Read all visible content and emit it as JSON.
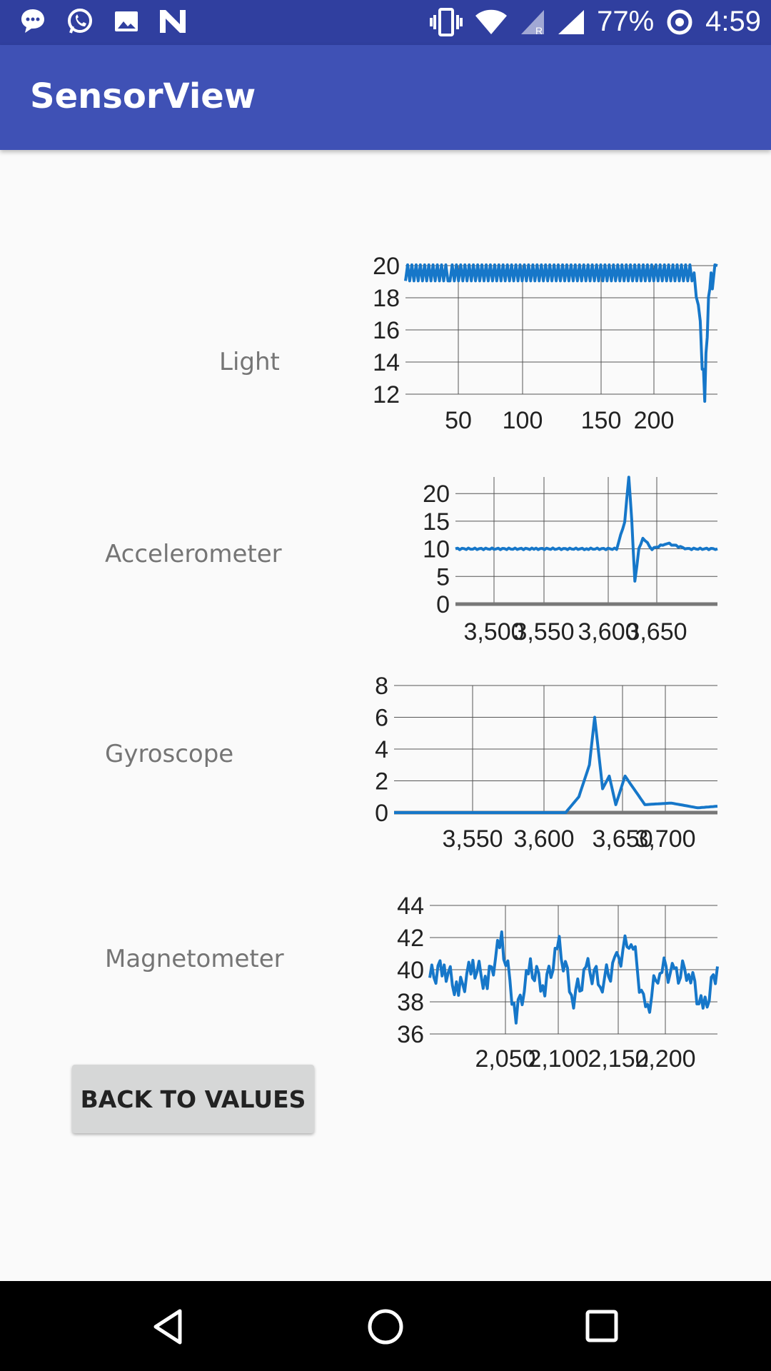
{
  "status_bar": {
    "battery": "77%",
    "time": "4:59",
    "icons_left": [
      "chat-bubble-icon",
      "whatsapp-icon",
      "image-icon",
      "n-logo-icon"
    ],
    "icons_right": [
      "vibrate-icon",
      "wifi-icon",
      "signal-r-icon",
      "signal-icon",
      "battery-saver-icon"
    ]
  },
  "app_bar": {
    "title": "SensorView"
  },
  "rows": [
    {
      "label": "Light"
    },
    {
      "label": "Accelerometer"
    },
    {
      "label": "Gyroscope"
    },
    {
      "label": "Magnetometer"
    }
  ],
  "button": {
    "label": "BACK TO VALUES"
  },
  "nav_bar": {
    "icons": [
      "back-icon",
      "home-icon",
      "recents-icon"
    ]
  },
  "colors": {
    "status": "#303f9f",
    "app_bar": "#3f51b5",
    "series": "#1677c9"
  },
  "chart_data": [
    {
      "type": "line",
      "name": "Light",
      "xticks": [
        50,
        100,
        150,
        200
      ],
      "xlim": [
        0,
        240
      ],
      "yticks": [
        12,
        14,
        16,
        18,
        20
      ],
      "ylim": [
        12,
        20
      ],
      "series": [
        {
          "x": [
            5,
            40,
            80,
            120,
            160,
            200,
            230,
            235,
            238,
            240,
            242,
            244,
            246,
            250
          ],
          "y": [
            19.5,
            19.5,
            19.5,
            19.5,
            19.5,
            19.5,
            19.5,
            18,
            14,
            12,
            16,
            19,
            19,
            20
          ]
        }
      ]
    },
    {
      "type": "line",
      "name": "Accelerometer",
      "xticks": [
        "3,500",
        "3,550",
        "3,600",
        "3,650"
      ],
      "yticks": [
        0,
        5,
        10,
        15,
        20
      ],
      "ylim": [
        0,
        23
      ],
      "series": [
        {
          "x": [
            3470,
            3500,
            3550,
            3600,
            3630,
            3638,
            3642,
            3645,
            3648,
            3652,
            3656,
            3665,
            3680,
            3700,
            3730
          ],
          "y": [
            10,
            10,
            10,
            10,
            10,
            15,
            23,
            15,
            4,
            10,
            12,
            10,
            11,
            10,
            10
          ]
        }
      ]
    },
    {
      "type": "line",
      "name": "Gyroscope",
      "xticks": [
        "3,550",
        "3,600",
        "3,650",
        "3,700"
      ],
      "yticks": [
        0,
        2,
        4,
        6,
        8
      ],
      "ylim": [
        0,
        8
      ],
      "series": [
        {
          "x": [
            3470,
            3500,
            3550,
            3600,
            3610,
            3618,
            3622,
            3628,
            3633,
            3638,
            3645,
            3660,
            3680,
            3700,
            3715
          ],
          "y": [
            0,
            0,
            0,
            0,
            1,
            3,
            6,
            1.5,
            2.3,
            0.5,
            2.3,
            0.5,
            0.6,
            0.3,
            0.4
          ]
        }
      ]
    },
    {
      "type": "line",
      "name": "Magnetometer",
      "xticks": [
        "2,050",
        "2,100",
        "2,150",
        "2,200"
      ],
      "yticks": [
        36,
        38,
        40,
        42,
        44
      ],
      "ylim": [
        36,
        44
      ],
      "series": [
        {
          "x": [
            2020,
            2030,
            2040,
            2050,
            2060,
            2070,
            2080,
            2090,
            2100,
            2110,
            2120,
            2130,
            2140,
            2150,
            2160,
            2170,
            2180,
            2190,
            2200,
            2210,
            2220
          ],
          "y": [
            39.5,
            40.2,
            38.6,
            40.3,
            39.2,
            41.9,
            37.2,
            40.1,
            39.0,
            41.4,
            38.3,
            40.0,
            39.3,
            40.4,
            42.2,
            37.1,
            40.3,
            39.6,
            40.1,
            37.3,
            40.2
          ]
        }
      ]
    }
  ]
}
